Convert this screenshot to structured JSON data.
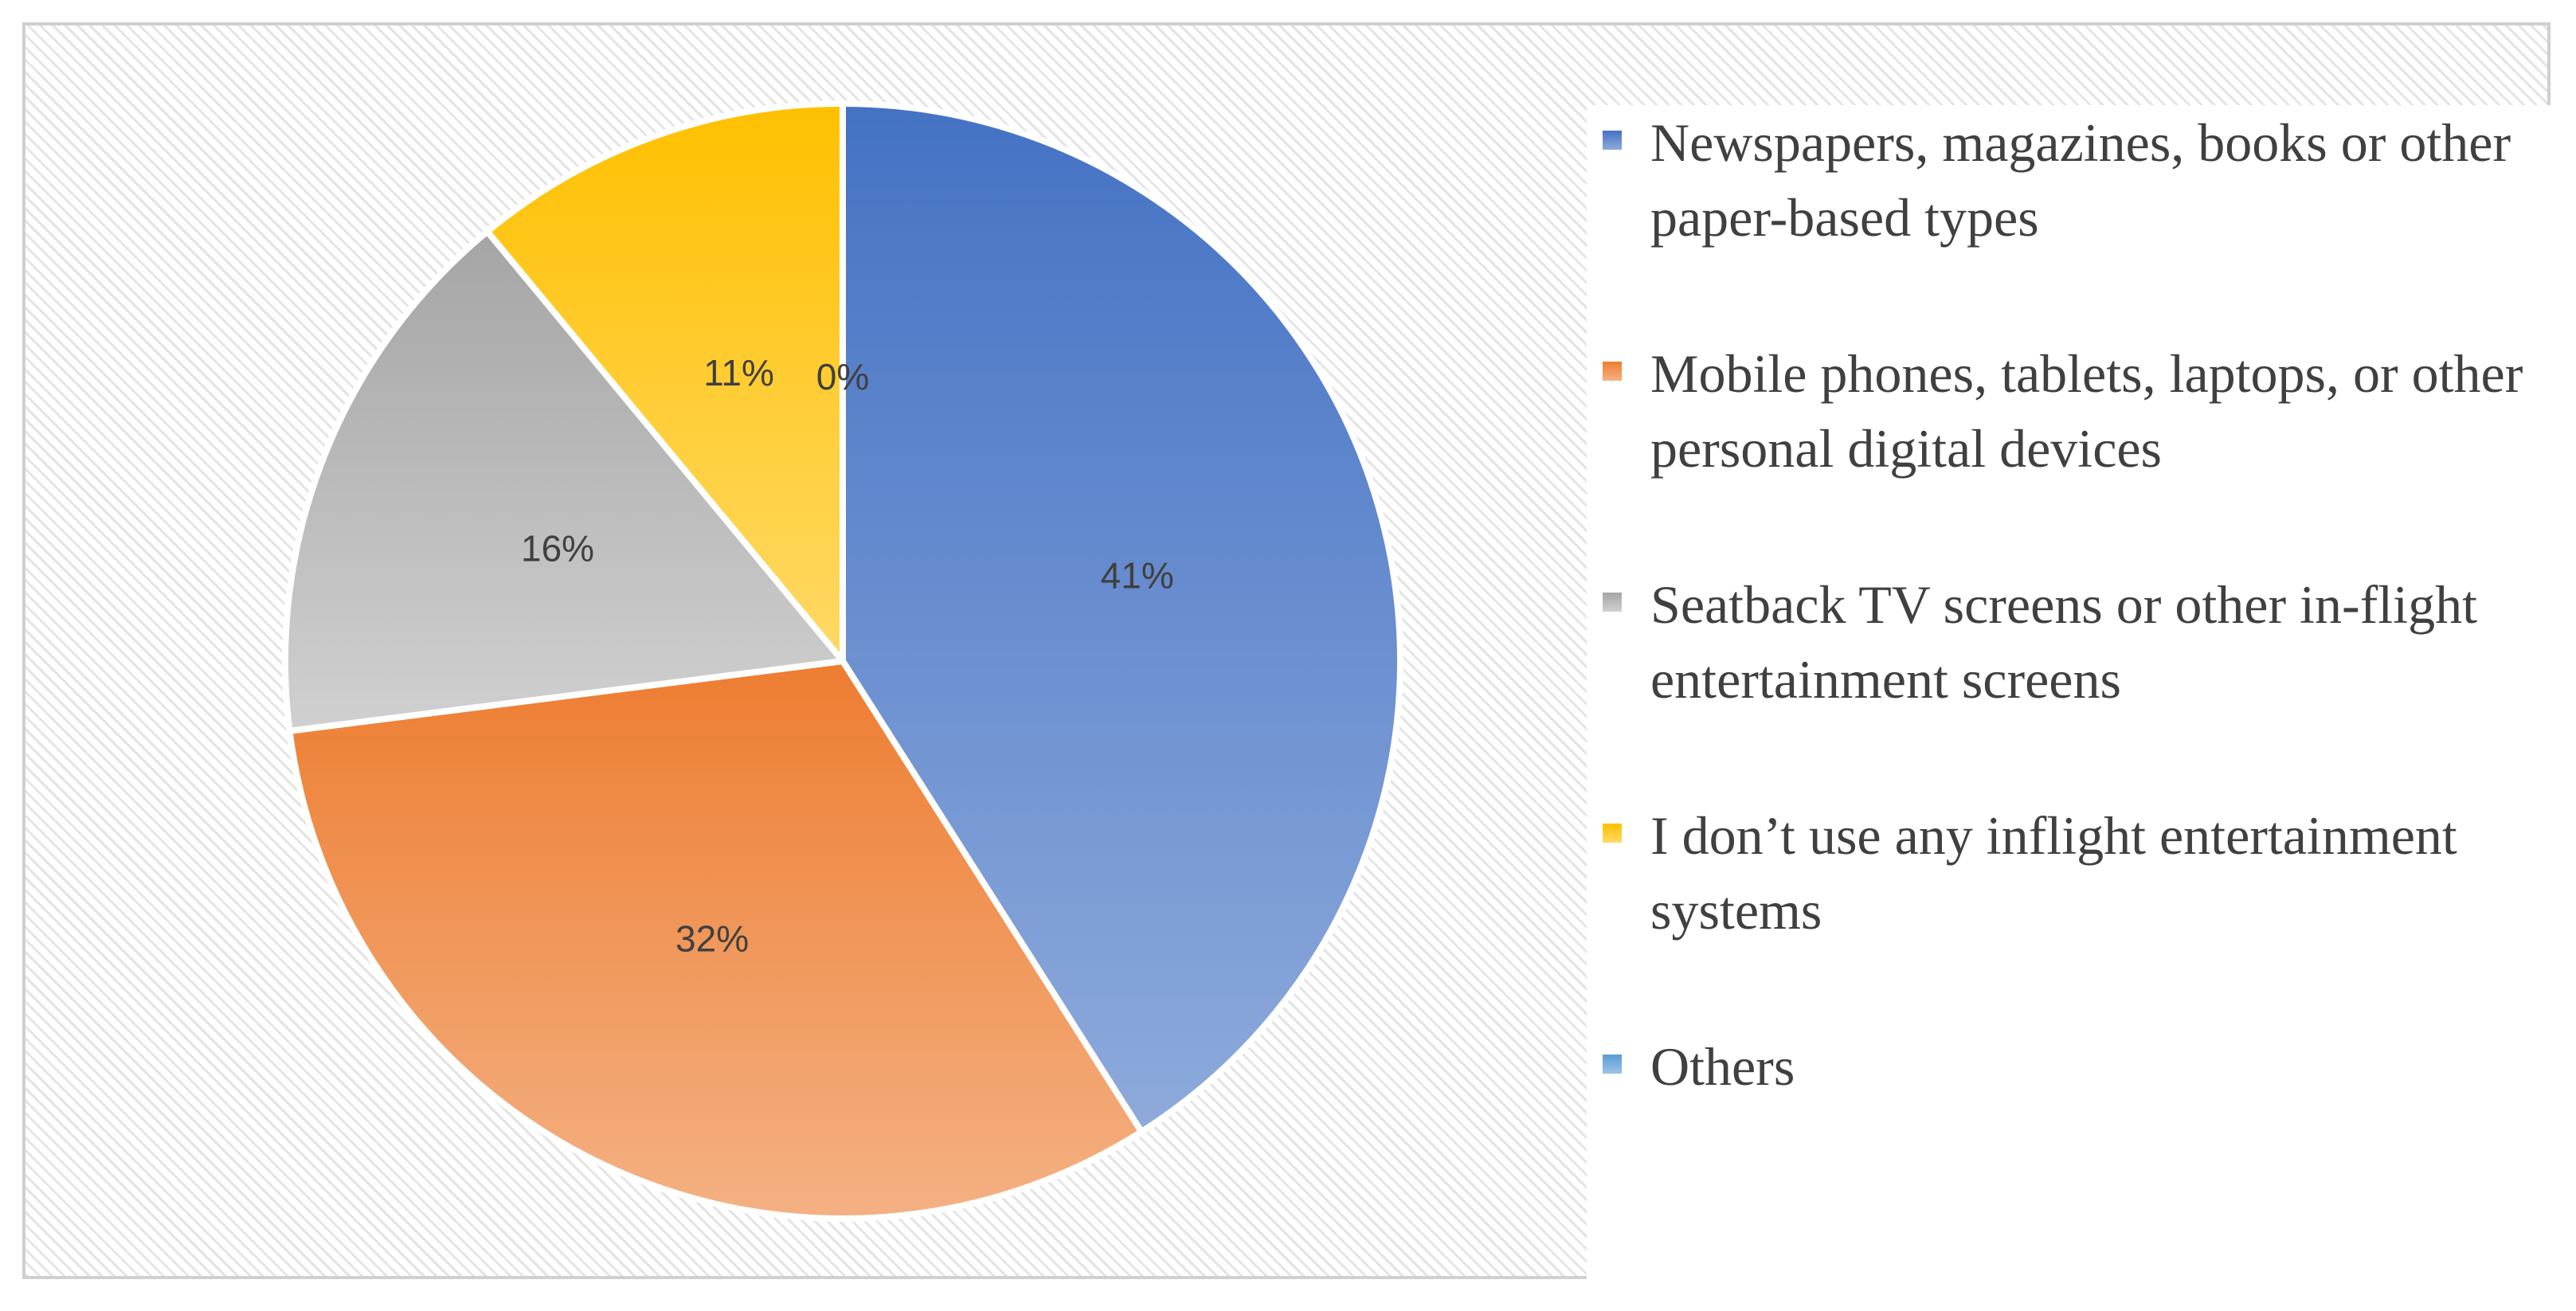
{
  "chart_data": {
    "type": "pie",
    "title": "",
    "slices": [
      {
        "label": "Newspapers, magazines, books or other paper-based types",
        "value": 41,
        "display": "41%",
        "color": "#4472c4",
        "color_light": "#8eaadb"
      },
      {
        "label": "Mobile phones, tablets, laptops, or other personal digital devices",
        "value": 32,
        "display": "32%",
        "color": "#ed7d31",
        "color_light": "#f4b183"
      },
      {
        "label": "Seatback TV screens or other in-flight entertainment screens",
        "value": 16,
        "display": "16%",
        "color": "#a5a5a5",
        "color_light": "#d0d0d0"
      },
      {
        "label": "I don’t use any inflight entertainment systems",
        "value": 11,
        "display": "11%",
        "color": "#ffc000",
        "color_light": "#ffd966"
      },
      {
        "label": "Others",
        "value": 0,
        "display": "0%",
        "color": "#5b9bd5",
        "color_light": "#9dc3e6"
      }
    ],
    "legend_position": "right",
    "data_labels": true
  }
}
